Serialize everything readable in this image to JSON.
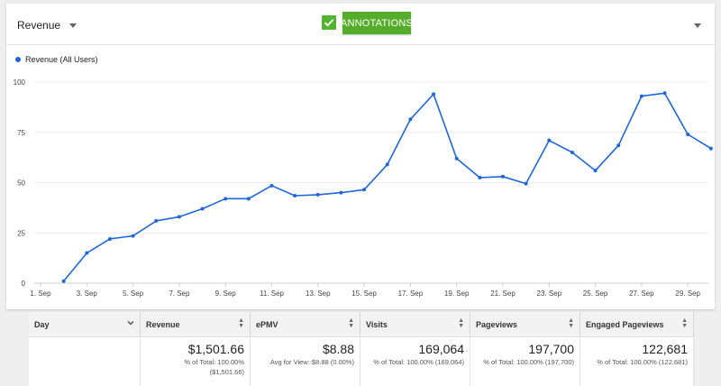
{
  "metric_selector": {
    "label": "Revenue"
  },
  "annotations_button": {
    "label": "ANNOTATIONS"
  },
  "legend": {
    "label": "Revenue (All Users)",
    "color": "#2166d6"
  },
  "chart_data": {
    "type": "line",
    "ylim": [
      0,
      100
    ],
    "y_ticks": [
      "100",
      "75",
      "50",
      "25",
      "0"
    ],
    "x_tick_labels": [
      "1. Sep",
      "3. Sep",
      "5. Sep",
      "7. Sep",
      "9. Sep",
      "11. Sep",
      "13. Sep",
      "15. Sep",
      "17. Sep",
      "19. Sep",
      "21. Sep",
      "23. Sep",
      "25. Sep",
      "27. Sep",
      "29. Sep"
    ],
    "x": [
      2,
      3,
      4,
      5,
      6,
      7,
      8,
      9,
      10,
      11,
      12,
      13,
      14,
      15,
      16,
      17,
      18,
      19,
      20,
      21,
      22,
      23,
      24,
      25,
      26,
      27,
      28,
      29,
      30
    ],
    "series": [
      {
        "name": "Revenue (All Users)",
        "color": "#2166d6",
        "values": [
          1,
          15,
          22,
          23.5,
          31,
          33,
          37,
          42,
          42,
          48.5,
          43.5,
          44,
          45,
          46.5,
          59,
          81.5,
          94,
          62,
          52.5,
          53,
          49.5,
          71,
          65,
          56,
          68.5,
          93,
          94.5,
          74,
          67
        ]
      }
    ],
    "grid": true
  },
  "table": {
    "columns": [
      "Day",
      "Revenue",
      "ePMV",
      "Visits",
      "Pageviews",
      "Engaged Pageviews"
    ],
    "totals": [
      {
        "value": "",
        "sub1": "",
        "sub2": ""
      },
      {
        "value": "$1,501.66",
        "sub1": "% of Total: 100.00%",
        "sub2": "($1,501.66)"
      },
      {
        "value": "$8.88",
        "sub1": "Avg for View: $8.88 (0.00%)",
        "sub2": ""
      },
      {
        "value": "169,064",
        "sub1": "% of Total: 100.00% (169,064)",
        "sub2": ""
      },
      {
        "value": "197,700",
        "sub1": "% of Total: 100.00% (197,700)",
        "sub2": ""
      },
      {
        "value": "122,681",
        "sub1": "% of Total: 100.00% (122,681)",
        "sub2": ""
      }
    ]
  }
}
